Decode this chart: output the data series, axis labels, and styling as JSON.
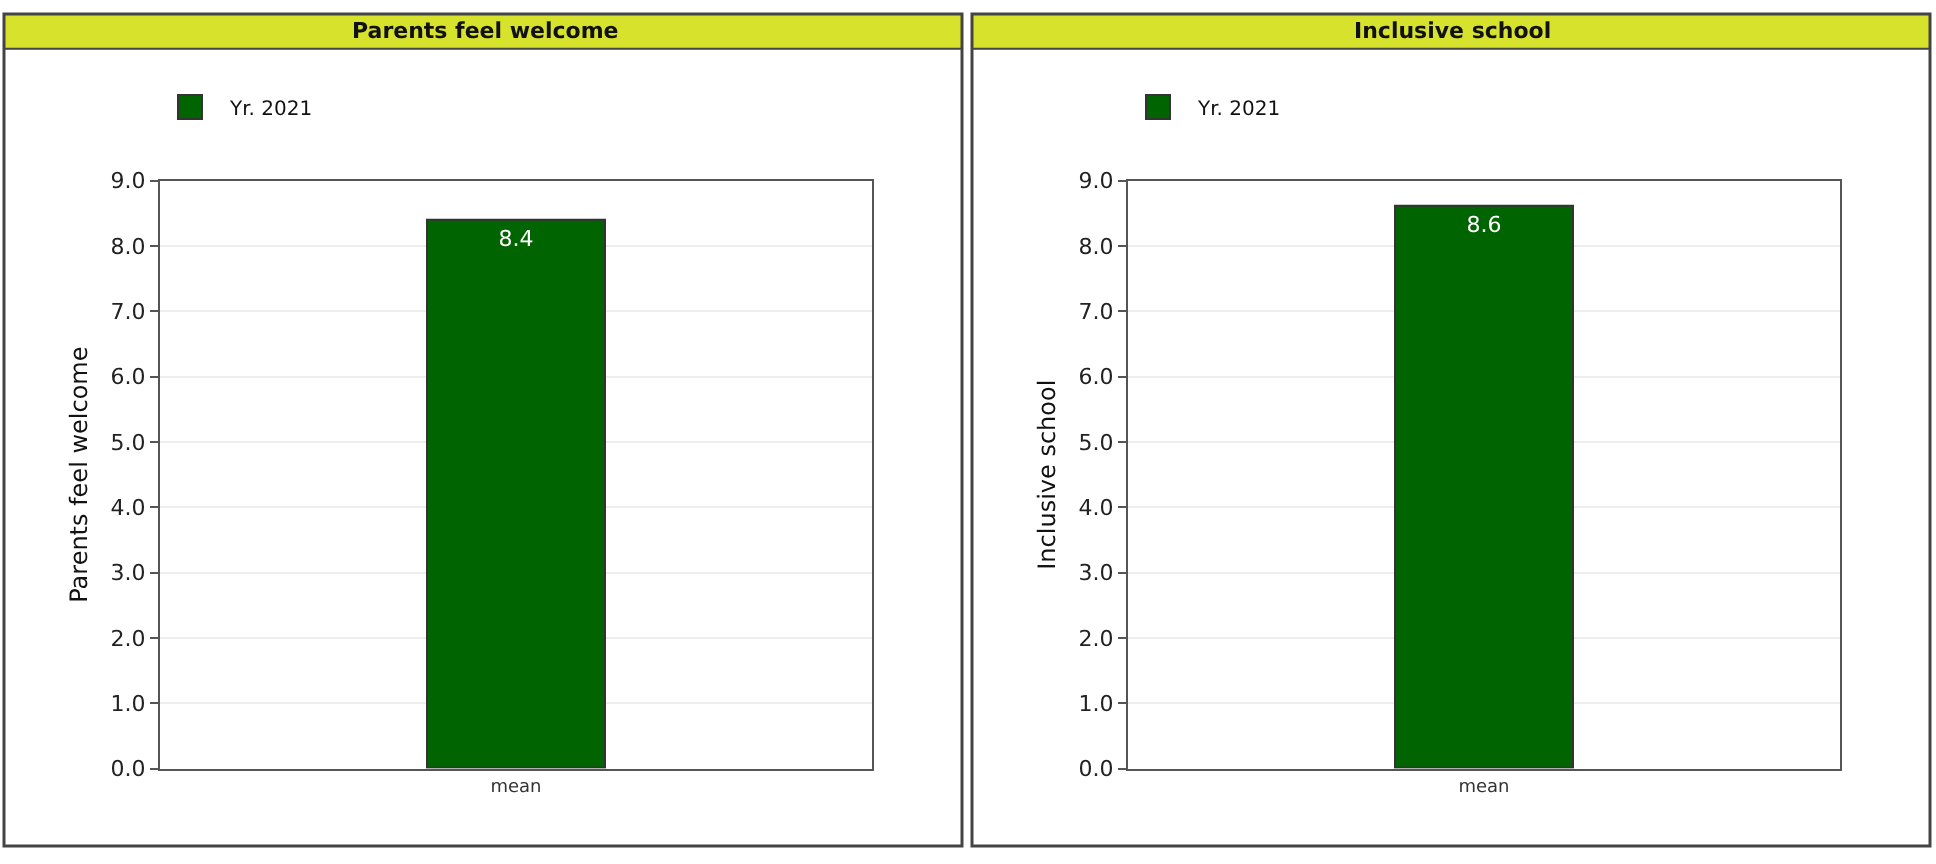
{
  "chart_data": [
    {
      "type": "bar",
      "title": "Parents feel welcome",
      "ylabel": "Parents feel welcome",
      "categories": [
        "mean"
      ],
      "series": [
        {
          "name": "Yr. 2021",
          "color": "#006400",
          "values": [
            8.4
          ]
        }
      ],
      "ylim": [
        0,
        9
      ],
      "yticks": [
        {
          "value": 0,
          "label": "0.0"
        },
        {
          "value": 1,
          "label": "1.0"
        },
        {
          "value": 2,
          "label": "2.0"
        },
        {
          "value": 3,
          "label": "3.0"
        },
        {
          "value": 4,
          "label": "4.0"
        },
        {
          "value": 5,
          "label": "5.0"
        },
        {
          "value": 6,
          "label": "6.0"
        },
        {
          "value": 7,
          "label": "7.0"
        },
        {
          "value": 8,
          "label": "8.0"
        },
        {
          "value": 9,
          "label": "9.0"
        }
      ],
      "grid": "y",
      "legend": "top left",
      "data_labels": true
    },
    {
      "type": "bar",
      "title": "Inclusive school",
      "ylabel": "Inclusive school",
      "categories": [
        "mean"
      ],
      "series": [
        {
          "name": "Yr. 2021",
          "color": "#006400",
          "values": [
            8.6
          ]
        }
      ],
      "ylim": [
        0,
        9
      ],
      "yticks": [
        {
          "value": 0,
          "label": "0.0"
        },
        {
          "value": 1,
          "label": "1.0"
        },
        {
          "value": 2,
          "label": "2.0"
        },
        {
          "value": 3,
          "label": "3.0"
        },
        {
          "value": 4,
          "label": "4.0"
        },
        {
          "value": 5,
          "label": "5.0"
        },
        {
          "value": 6,
          "label": "6.0"
        },
        {
          "value": 7,
          "label": "7.0"
        },
        {
          "value": 8,
          "label": "8.0"
        },
        {
          "value": 9,
          "label": "9.0"
        }
      ],
      "grid": "y",
      "legend": "top left",
      "data_labels": true
    }
  ]
}
